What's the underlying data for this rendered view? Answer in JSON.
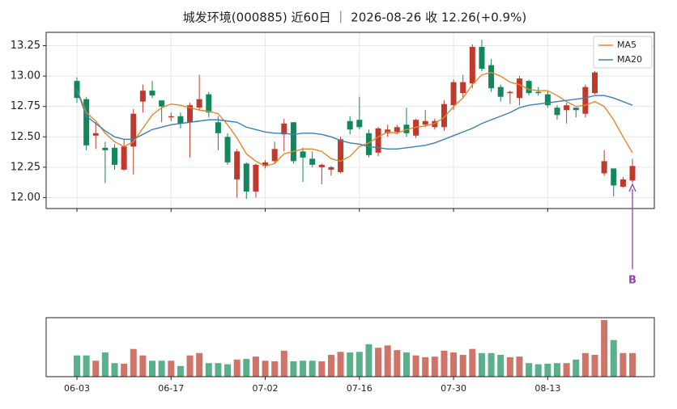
{
  "chart_data": {
    "type": "candlestick",
    "title": "城发环境(000885) 近60日 ｜ 2026-08-26 收 12.26(+0.9%)",
    "categories": [
      "06-03",
      null,
      null,
      null,
      null,
      null,
      null,
      null,
      null,
      null,
      "06-17",
      null,
      null,
      null,
      null,
      null,
      null,
      null,
      null,
      null,
      "07-02",
      null,
      null,
      null,
      null,
      null,
      null,
      null,
      null,
      null,
      "07-16",
      null,
      null,
      null,
      null,
      null,
      null,
      null,
      null,
      null,
      "07-30",
      null,
      null,
      null,
      null,
      null,
      null,
      null,
      null,
      null,
      "08-13",
      null,
      null,
      null,
      null,
      null,
      null,
      null,
      null,
      null
    ],
    "open": [
      12.96,
      12.81,
      12.51,
      12.41,
      12.41,
      12.23,
      12.42,
      12.79,
      12.88,
      12.8,
      12.66,
      12.67,
      12.62,
      12.74,
      12.85,
      12.62,
      12.5,
      12.15,
      12.28,
      12.05,
      12.26,
      12.3,
      12.52,
      12.62,
      12.38,
      12.32,
      12.25,
      12.23,
      12.21,
      12.63,
      12.64,
      12.53,
      12.37,
      12.53,
      12.54,
      12.6,
      12.51,
      12.6,
      12.58,
      12.58,
      12.76,
      12.86,
      12.94,
      13.24,
      13.09,
      12.91,
      12.86,
      12.82,
      12.96,
      12.87,
      12.85,
      12.74,
      12.72,
      12.74,
      12.69,
      12.86,
      12.2,
      12.24,
      12.09,
      12.14
    ],
    "high": [
      12.99,
      12.83,
      12.62,
      12.46,
      12.44,
      12.48,
      12.73,
      12.93,
      12.96,
      12.8,
      12.7,
      12.7,
      12.78,
      13.01,
      12.87,
      12.67,
      12.53,
      12.4,
      12.29,
      12.28,
      12.31,
      12.46,
      12.65,
      12.62,
      12.41,
      12.38,
      12.28,
      12.26,
      12.5,
      12.67,
      12.83,
      12.56,
      12.58,
      12.6,
      12.6,
      12.74,
      12.65,
      12.72,
      12.65,
      12.8,
      12.97,
      13.01,
      13.26,
      13.3,
      13.14,
      12.93,
      12.88,
      13.0,
      12.97,
      12.91,
      12.88,
      12.76,
      12.78,
      12.74,
      12.93,
      13.04,
      12.39,
      12.24,
      12.17,
      12.32
    ],
    "low": [
      12.78,
      12.39,
      12.4,
      12.12,
      12.23,
      12.22,
      12.19,
      12.7,
      12.82,
      12.62,
      12.63,
      12.57,
      12.33,
      12.72,
      12.66,
      12.39,
      12.27,
      12.0,
      11.99,
      12.0,
      12.24,
      12.28,
      12.38,
      12.28,
      12.13,
      12.25,
      12.11,
      12.18,
      12.2,
      12.52,
      12.56,
      12.33,
      12.34,
      12.5,
      12.52,
      12.5,
      12.49,
      12.58,
      12.56,
      12.55,
      12.72,
      12.82,
      12.9,
      13.04,
      12.87,
      12.79,
      12.77,
      12.76,
      12.84,
      12.84,
      12.74,
      12.64,
      12.61,
      12.66,
      12.66,
      12.85,
      12.18,
      12.01,
      12.08,
      12.12
    ],
    "close": [
      12.82,
      12.43,
      12.53,
      12.39,
      12.27,
      12.42,
      12.69,
      12.88,
      12.84,
      12.75,
      12.67,
      12.61,
      12.76,
      12.81,
      12.7,
      12.53,
      12.29,
      12.38,
      12.05,
      12.27,
      12.29,
      12.4,
      12.61,
      12.3,
      12.33,
      12.27,
      12.27,
      12.25,
      12.48,
      12.56,
      12.58,
      12.35,
      12.57,
      12.56,
      12.58,
      12.53,
      12.64,
      12.63,
      12.63,
      12.77,
      12.95,
      12.95,
      13.24,
      13.06,
      12.9,
      12.83,
      12.87,
      12.98,
      12.86,
      12.86,
      12.76,
      12.68,
      12.76,
      12.72,
      12.91,
      13.03,
      12.3,
      12.1,
      12.15,
      12.26
    ],
    "volume": [
      36,
      36,
      27,
      41,
      23,
      22,
      47,
      36,
      27,
      27,
      27,
      18,
      36,
      40,
      23,
      23,
      21,
      29,
      30,
      34,
      27,
      26,
      44,
      26,
      27,
      27,
      26,
      37,
      42,
      41,
      42,
      55,
      49,
      53,
      45,
      41,
      36,
      33,
      34,
      44,
      41,
      37,
      47,
      40,
      40,
      37,
      33,
      34,
      23,
      21,
      22,
      23,
      23,
      29,
      40,
      37,
      96,
      62,
      40,
      40
    ],
    "vlim": [
      0,
      100
    ],
    "up_color": "#bf3a2c",
    "down_color": "#12875c",
    "up_volume_color": "#cf7468",
    "down_volume_color": "#5bb08c",
    "series": [
      {
        "name": "MA5",
        "color": "#e6862a",
        "values": [
          12.89,
          12.7,
          12.63,
          12.53,
          12.46,
          12.42,
          12.46,
          12.57,
          12.68,
          12.74,
          12.77,
          12.76,
          12.74,
          12.72,
          12.71,
          12.69,
          12.6,
          12.49,
          12.36,
          12.3,
          12.26,
          12.28,
          12.36,
          12.38,
          12.4,
          12.4,
          12.38,
          12.32,
          12.3,
          12.34,
          12.42,
          12.45,
          12.5,
          12.54,
          12.53,
          12.56,
          12.58,
          12.59,
          12.61,
          12.66,
          12.75,
          12.82,
          12.93,
          13.01,
          13.03,
          13.0,
          12.95,
          12.93,
          12.89,
          12.88,
          12.88,
          12.84,
          12.79,
          12.75,
          12.76,
          12.79,
          12.75,
          12.64,
          12.5,
          12.37
        ]
      },
      {
        "name": "MA20",
        "color": "#3a80b8",
        "values": [
          12.89,
          12.67,
          12.61,
          12.55,
          12.5,
          12.48,
          12.48,
          12.52,
          12.56,
          12.58,
          12.6,
          12.61,
          12.62,
          12.63,
          12.64,
          12.64,
          12.63,
          12.62,
          12.58,
          12.56,
          12.54,
          12.53,
          12.53,
          12.52,
          12.53,
          12.53,
          12.52,
          12.5,
          12.47,
          12.45,
          12.44,
          12.42,
          12.41,
          12.4,
          12.4,
          12.41,
          12.42,
          12.43,
          12.45,
          12.48,
          12.51,
          12.54,
          12.57,
          12.61,
          12.64,
          12.67,
          12.7,
          12.74,
          12.76,
          12.77,
          12.78,
          12.79,
          12.8,
          12.81,
          12.82,
          12.84,
          12.84,
          12.82,
          12.79,
          12.76
        ]
      }
    ],
    "ylim": [
      11.91,
      13.36
    ],
    "yticks": [
      {
        "value": 12.0,
        "label": "12.00"
      },
      12.25,
      {
        "value": 12.5,
        "label": "12.50"
      },
      12.75,
      {
        "value": 13.0,
        "label": "13.00"
      },
      13.25
    ],
    "grid": true,
    "legend": "upper right",
    "annotation": {
      "text": "B",
      "value": 12.11,
      "color": "#8e44ad"
    }
  }
}
